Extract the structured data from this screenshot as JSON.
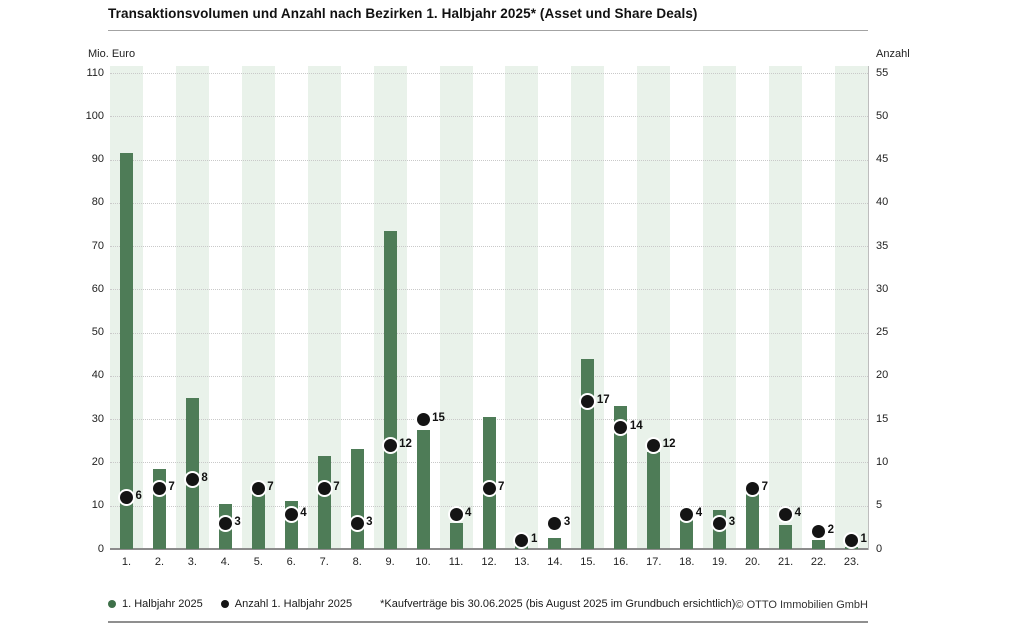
{
  "header": {
    "title": "Transaktionsvolumen und Anzahl nach Bezirken 1. Halbjahr 2025* (Asset und Share Deals)"
  },
  "chart_data": {
    "type": "bar",
    "title": "Transaktionsvolumen und Anzahl nach Bezirken 1. Halbjahr 2025* (Asset und Share Deals)",
    "categories": [
      "1.",
      "2.",
      "3.",
      "4.",
      "5.",
      "6.",
      "7.",
      "8.",
      "9.",
      "10.",
      "11.",
      "12.",
      "13.",
      "14.",
      "15.",
      "16.",
      "17.",
      "18.",
      "19.",
      "20.",
      "21.",
      "22.",
      "23."
    ],
    "series": [
      {
        "name": "1. Halbjahr 2025",
        "render": "bar",
        "axis": "left",
        "values": [
          91.5,
          18.5,
          35,
          10.5,
          13.5,
          11,
          21.5,
          23,
          73.5,
          27.5,
          6,
          30.5,
          0.7,
          2.5,
          44,
          33,
          22.5,
          8,
          9,
          13,
          5.5,
          2,
          0.4
        ]
      },
      {
        "name": "Anzahl 1. Halbjahr 2025",
        "render": "point",
        "axis": "right",
        "values": [
          6,
          7,
          8,
          3,
          7,
          4,
          7,
          3,
          12,
          15,
          4,
          7,
          1,
          3,
          17,
          14,
          12,
          4,
          3,
          7,
          4,
          2,
          1
        ]
      }
    ],
    "left_axis": {
      "label": "Mio. Euro",
      "min": 0,
      "max": 110,
      "step": 10,
      "ticks": [
        0,
        10,
        20,
        30,
        40,
        50,
        60,
        70,
        80,
        90,
        100,
        110
      ]
    },
    "right_axis": {
      "label": "Anzahl",
      "min": 0,
      "max": 55,
      "step": 5,
      "ticks": [
        0,
        5,
        10,
        15,
        20,
        25,
        30,
        35,
        40,
        45,
        50,
        55
      ]
    },
    "grid": "horizontal dotted",
    "background_bands": "pale green behind odd-numbered districts",
    "legend_position": "bottom-left",
    "colors": {
      "bar": "#4e7c57",
      "band": "#e9f2ea",
      "dot": "#141414",
      "grid": "#c9c9c9"
    }
  },
  "footer": {
    "note": "*Kaufverträge bis 30.06.2025 (bis August 2025 im Grundbuch ersichtlich)",
    "copyright": "© OTTO Immobilien GmbH"
  }
}
